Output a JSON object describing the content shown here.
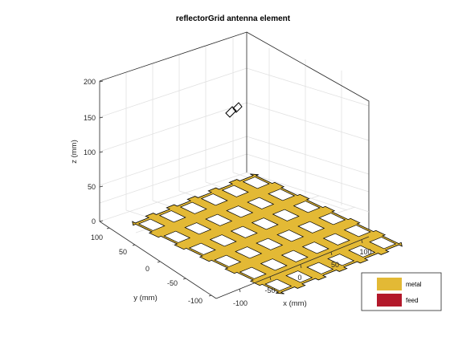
{
  "figure": {
    "title": "reflectorGrid antenna element",
    "axes": {
      "z_label": "z (mm)",
      "y_label": "y (mm)",
      "x_label": "x (mm)",
      "z_ticks": [
        "0",
        "50",
        "100",
        "150",
        "200"
      ],
      "y_ticks": [
        "100",
        "50",
        "0",
        "-50",
        "-100"
      ],
      "x_ticks": [
        "-100",
        "-50",
        "0",
        "50",
        "100"
      ],
      "grid": true
    },
    "legend": {
      "placement": "bottom-right",
      "items": [
        {
          "label": "metal",
          "color": "#E3B935"
        },
        {
          "label": "feed",
          "color": "#B3192B"
        }
      ]
    },
    "colors": {
      "metal": "#E3B935",
      "feed": "#B3192B",
      "grid_line": "#E1E1E1",
      "box_line": "#262626"
    }
  }
}
